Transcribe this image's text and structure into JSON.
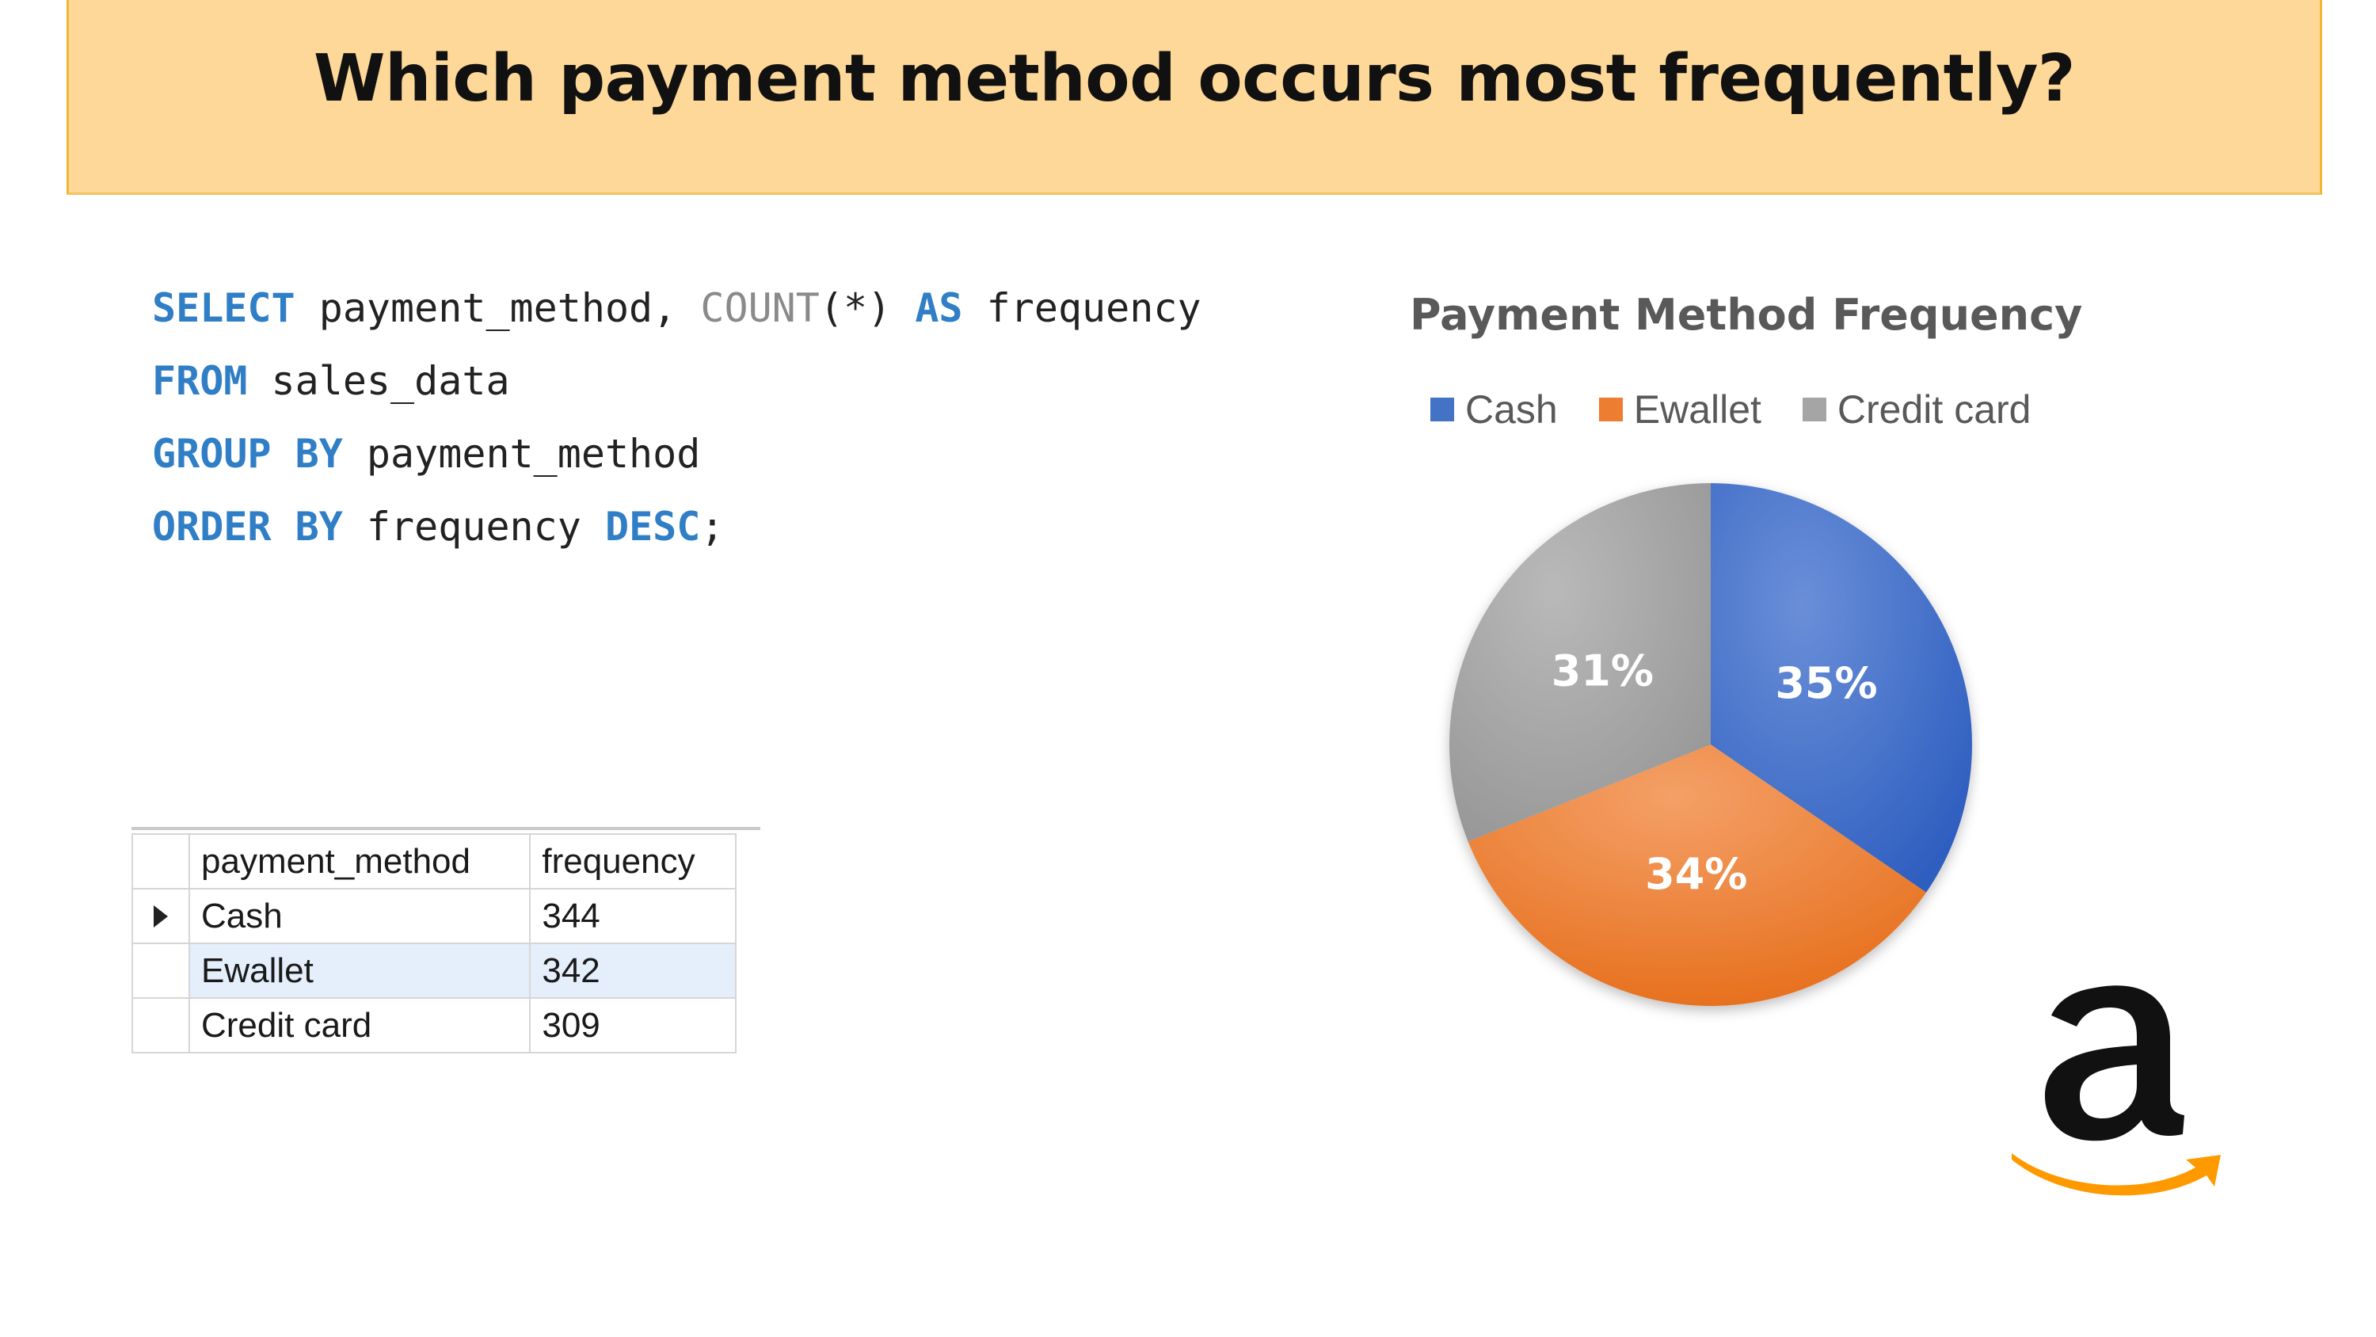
{
  "header": {
    "title": "Which payment method occurs most frequently?"
  },
  "sql": {
    "line1": {
      "kw1": "SELECT",
      "t1": " payment_method, ",
      "fn": "COUNT",
      "t2": "(*) ",
      "kw2": "AS",
      "t3": " frequency"
    },
    "line2": {
      "kw1": "FROM",
      "t1": " sales_data"
    },
    "line3": {
      "kw1": "GROUP BY",
      "t1": " payment_method"
    },
    "line4": {
      "kw1": "ORDER BY",
      "t1": " frequency ",
      "kw2": "DESC",
      "t2": ";"
    }
  },
  "result_grid": {
    "columns": [
      "payment_method",
      "frequency"
    ],
    "rows": [
      {
        "payment_method": "Cash",
        "frequency": "344"
      },
      {
        "payment_method": "Ewallet",
        "frequency": "342"
      },
      {
        "payment_method": "Credit card",
        "frequency": "309"
      }
    ]
  },
  "chart_data": {
    "type": "pie",
    "title": "Payment Method Frequency",
    "legend_position": "top",
    "categories": [
      "Cash",
      "Ewallet",
      "Credit card"
    ],
    "values": [
      344,
      342,
      309
    ],
    "data_labels": [
      "35%",
      "34%",
      "31%"
    ],
    "colors": [
      "#4472c4",
      "#ed7d31",
      "#a5a5a5"
    ]
  },
  "logo": {
    "icon": "amazon-logo-icon",
    "arrow_color": "#f90",
    "letter_color": "#111111"
  }
}
